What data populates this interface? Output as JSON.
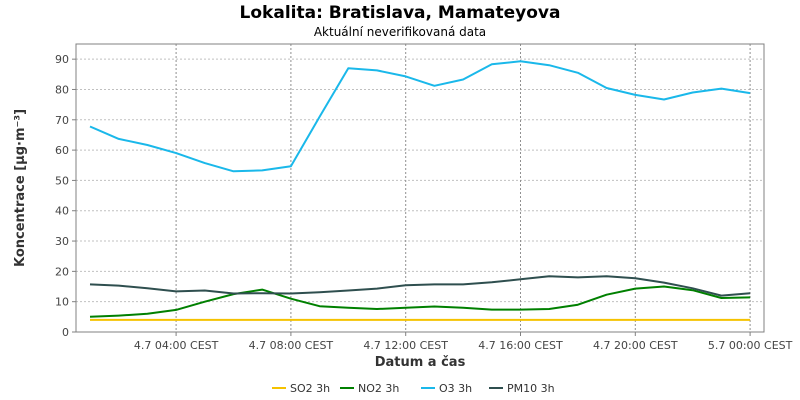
{
  "chart_data": {
    "type": "line",
    "title": "Lokalita: Bratislava, Mamateyova",
    "subtitle": "Aktuální neverifikovaná data",
    "xlabel": "Datum a čas",
    "ylabel": "Koncentrace [µg·m⁻³]",
    "ylim": [
      0,
      95
    ],
    "yticks": [
      0,
      10,
      20,
      30,
      40,
      50,
      60,
      70,
      80,
      90
    ],
    "xlim": [
      0,
      23.3
    ],
    "xticks": [
      {
        "x": 3,
        "label": "4.7 04:00 CEST"
      },
      {
        "x": 7,
        "label": "4.7 08:00 CEST"
      },
      {
        "x": 11,
        "label": "4.7 12:00 CEST"
      },
      {
        "x": 15,
        "label": "4.7 16:00 CEST"
      },
      {
        "x": 19,
        "label": "4.7 20:00 CEST"
      },
      {
        "x": 23,
        "label": "5.7 00:00 CEST"
      }
    ],
    "x": [
      0,
      1,
      2,
      3,
      4,
      5,
      6,
      7,
      8,
      9,
      10,
      11,
      12,
      13,
      14,
      15,
      16,
      17,
      18,
      19,
      20,
      21,
      22,
      23
    ],
    "grid": true,
    "legend_position": "bottom",
    "series": [
      {
        "name": "SO2 3h",
        "color": "#f5c200",
        "values": [
          4,
          4,
          4,
          4,
          4,
          4,
          4,
          4,
          4,
          4,
          4,
          4,
          4,
          4,
          4,
          4,
          4,
          4,
          4,
          4,
          4,
          4,
          4,
          4
        ]
      },
      {
        "name": "NO2 3h",
        "color": "#008000",
        "values": [
          5,
          5.4,
          6,
          7.3,
          10,
          12.5,
          14,
          11,
          8.5,
          8,
          7.6,
          8,
          8.4,
          8,
          7.4,
          7.4,
          7.6,
          9,
          12.3,
          14.3,
          15,
          13.8,
          11.2,
          11.4
        ]
      },
      {
        "name": "O3 3h",
        "color": "#1ab8ea",
        "values": [
          67.8,
          63.7,
          61.7,
          59,
          55.7,
          53,
          53.3,
          54.7,
          71,
          87,
          86.3,
          84.3,
          81.2,
          83.3,
          88.3,
          89.3,
          88,
          85.5,
          80.5,
          78.2,
          76.7,
          79,
          80.3,
          78.8
        ]
      },
      {
        "name": "PM10 3h",
        "color": "#2f4f4f",
        "values": [
          15.7,
          15.3,
          14.4,
          13.4,
          13.7,
          12.7,
          12.8,
          12.7,
          13.1,
          13.7,
          14.3,
          15.4,
          15.7,
          15.7,
          16.4,
          17.4,
          18.4,
          18,
          18.4,
          17.7,
          16.3,
          14.4,
          12,
          12.8
        ]
      }
    ]
  }
}
